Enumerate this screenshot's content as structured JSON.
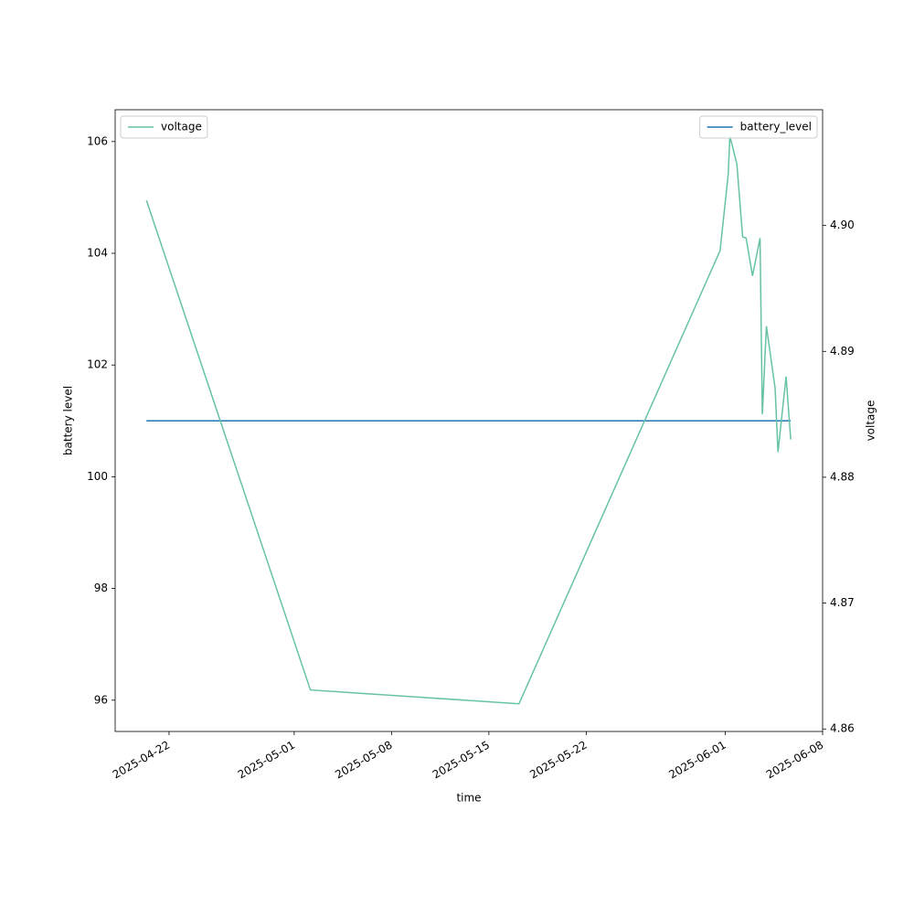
{
  "chart_data": {
    "type": "line",
    "x_label": "time",
    "y_label": "battery level",
    "y2_label": "voltage",
    "x": [
      "2025-04-20T09:00",
      "2025-05-02T04:00",
      "2025-05-17T04:00",
      "2025-05-31T15:00",
      "2025-06-01T05:00",
      "2025-06-01T08:00",
      "2025-06-01T20:00",
      "2025-06-02T06:00",
      "2025-06-02T12:00",
      "2025-06-02T23:00",
      "2025-06-03T12:00",
      "2025-06-03T16:00",
      "2025-06-03T23:00",
      "2025-06-04T14:00",
      "2025-06-04T19:00",
      "2025-06-05T09:00",
      "2025-06-05T17:00"
    ],
    "series": [
      {
        "name": "battery_level",
        "color": "#1f77b4",
        "legend": "upper right",
        "values": [
          101,
          101,
          101,
          101,
          101,
          101,
          101,
          101,
          101,
          101,
          101,
          101,
          101,
          101,
          101,
          101,
          101
        ]
      },
      {
        "name": "voltage",
        "color": "#66c2a5",
        "axis": "y2",
        "legend": "upper left",
        "values": [
          4.902,
          4.8631,
          4.862,
          4.898,
          4.904,
          4.9071,
          4.9049,
          4.8991,
          4.899,
          4.896,
          4.899,
          4.885,
          4.892,
          4.8871,
          4.882,
          4.888,
          4.883
        ]
      }
    ],
    "xlim": [
      "2025-04-18T03:00",
      "2025-06-08"
    ],
    "xticks": [
      "2025-04-22",
      "2025-05-01",
      "2025-05-08",
      "2025-05-15",
      "2025-05-22",
      "2025-06-01",
      "2025-06-08"
    ],
    "ylim": [
      95.44,
      106.57
    ],
    "yticks": [
      96,
      98,
      100,
      102,
      104,
      106
    ],
    "y2lim": [
      4.8598,
      4.9092
    ],
    "y2ticks": [
      4.86,
      4.87,
      4.88,
      4.89,
      {
        "value": 4.9,
        "label": "4.90"
      }
    ]
  }
}
